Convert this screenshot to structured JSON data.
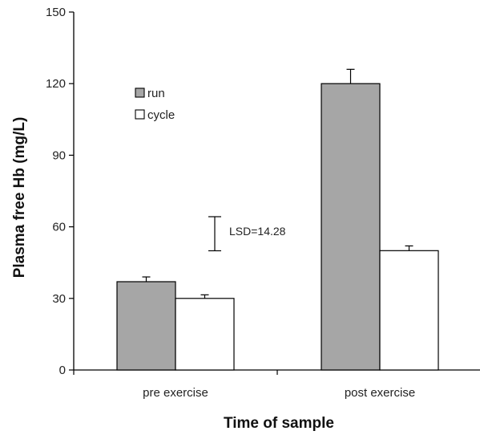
{
  "chart_data": {
    "type": "bar",
    "categories": [
      "pre exercise",
      "post exercise"
    ],
    "series": [
      {
        "name": "run",
        "values": [
          37,
          120
        ],
        "errors": [
          2,
          6
        ],
        "color": "#a6a6a6"
      },
      {
        "name": "cycle",
        "values": [
          30,
          50
        ],
        "errors": [
          1.5,
          2
        ],
        "color": "#ffffff"
      }
    ],
    "xlabel": "Time of sample",
    "ylabel": "Plasma free Hb (mg/L)",
    "ylim": [
      0,
      150
    ],
    "yticks": [
      0,
      30,
      60,
      90,
      120,
      150
    ],
    "grid": false,
    "legend_position": "top-left",
    "annotation": {
      "text": "LSD=14.28",
      "value": 14.28
    }
  }
}
